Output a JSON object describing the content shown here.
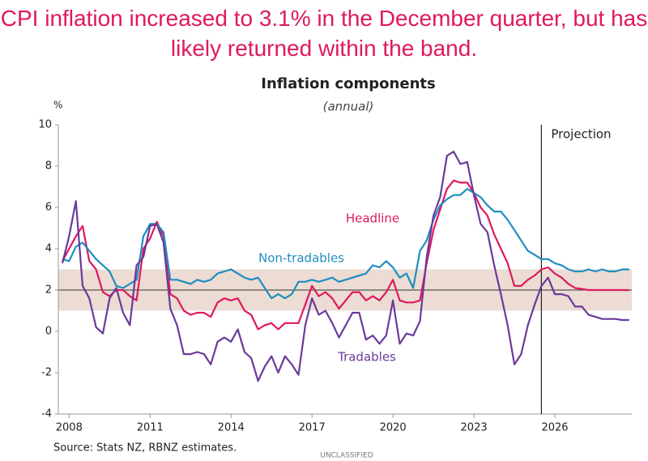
{
  "chart_data": {
    "type": "line",
    "headline": "CPI inflation increased to 3.1% in the December quarter, but has likely returned within the band.",
    "title": "Inflation components",
    "subtitle": "(annual)",
    "y_unit": "%",
    "source": "Source: Stats NZ, RBNZ estimates.",
    "classification": "UNCLASSIFIED",
    "projection_x": 2025.5,
    "projection_label": "Projection",
    "target_band": [
      1,
      3
    ],
    "band_color": "#ecdcd3",
    "hline": 2,
    "xlim": [
      2007.6,
      2028.85
    ],
    "xticks": [
      2008,
      2011,
      2014,
      2017,
      2020,
      2023,
      2026
    ],
    "ylim": [
      -4,
      10
    ],
    "yticks": [
      -4,
      -2,
      0,
      2,
      4,
      6,
      8,
      10
    ],
    "x": [
      2007.75,
      2008,
      2008.25,
      2008.5,
      2008.75,
      2009,
      2009.25,
      2009.5,
      2009.75,
      2010,
      2010.25,
      2010.5,
      2010.75,
      2011,
      2011.25,
      2011.5,
      2011.75,
      2012,
      2012.25,
      2012.5,
      2012.75,
      2013,
      2013.25,
      2013.5,
      2013.75,
      2014,
      2014.25,
      2014.5,
      2014.75,
      2015,
      2015.25,
      2015.5,
      2015.75,
      2016,
      2016.25,
      2016.5,
      2016.75,
      2017,
      2017.25,
      2017.5,
      2017.75,
      2018,
      2018.25,
      2018.5,
      2018.75,
      2019,
      2019.25,
      2019.5,
      2019.75,
      2020,
      2020.25,
      2020.5,
      2020.75,
      2021,
      2021.25,
      2021.5,
      2021.75,
      2022,
      2022.25,
      2022.5,
      2022.75,
      2023,
      2023.25,
      2023.5,
      2023.75,
      2024,
      2024.25,
      2024.5,
      2024.75,
      2025,
      2025.25,
      2025.5,
      2025.75,
      2026,
      2026.25,
      2026.5,
      2026.75,
      2027,
      2027.25,
      2027.5,
      2027.75,
      2028,
      2028.25,
      2028.5,
      2028.75
    ],
    "series": [
      {
        "name": "Headline",
        "color": "#e0185f",
        "values": [
          3.4,
          4.0,
          4.6,
          5.1,
          3.4,
          3.0,
          1.9,
          1.7,
          2.0,
          2.0,
          1.7,
          1.5,
          4.0,
          4.5,
          5.3,
          4.6,
          1.8,
          1.6,
          1.0,
          0.8,
          0.9,
          0.9,
          0.7,
          1.4,
          1.6,
          1.5,
          1.6,
          1.0,
          0.8,
          0.1,
          0.3,
          0.4,
          0.1,
          0.4,
          0.4,
          0.4,
          1.3,
          2.2,
          1.7,
          1.9,
          1.6,
          1.1,
          1.5,
          1.9,
          1.9,
          1.5,
          1.7,
          1.5,
          1.9,
          2.5,
          1.5,
          1.4,
          1.4,
          1.5,
          3.3,
          4.9,
          5.9,
          6.9,
          7.3,
          7.2,
          7.2,
          6.7,
          6.0,
          5.6,
          4.7,
          4.0,
          3.3,
          2.2,
          2.2,
          2.5,
          2.7,
          3.0,
          3.1,
          2.8,
          2.6,
          2.3,
          2.1,
          2.05,
          2.0,
          2.0,
          2.0,
          2.0,
          2.0,
          2.0,
          2.0
        ]
      },
      {
        "name": "Non-tradables",
        "color": "#1f8dc1",
        "values": [
          3.5,
          3.4,
          4.1,
          4.3,
          3.9,
          3.5,
          3.2,
          2.9,
          2.2,
          2.1,
          2.3,
          2.5,
          4.6,
          5.2,
          5.2,
          4.8,
          2.5,
          2.5,
          2.4,
          2.3,
          2.5,
          2.4,
          2.5,
          2.8,
          2.9,
          3.0,
          2.8,
          2.6,
          2.5,
          2.6,
          2.1,
          1.6,
          1.8,
          1.6,
          1.8,
          2.4,
          2.4,
          2.5,
          2.4,
          2.5,
          2.6,
          2.4,
          2.5,
          2.6,
          2.7,
          2.8,
          3.2,
          3.1,
          3.4,
          3.1,
          2.6,
          2.8,
          2.1,
          3.9,
          4.4,
          5.4,
          6.1,
          6.4,
          6.6,
          6.6,
          6.9,
          6.7,
          6.5,
          6.1,
          5.8,
          5.8,
          5.4,
          4.9,
          4.4,
          3.9,
          3.7,
          3.5,
          3.5,
          3.3,
          3.2,
          3.0,
          2.9,
          2.9,
          3.0,
          2.9,
          3.0,
          2.9,
          2.9,
          3.0,
          3.0
        ]
      },
      {
        "name": "Tradables",
        "color": "#6a3a9b",
        "values": [
          3.3,
          4.6,
          6.3,
          2.2,
          1.6,
          0.2,
          -0.1,
          1.6,
          2.1,
          0.9,
          0.3,
          3.2,
          3.6,
          5.1,
          5.2,
          4.3,
          1.1,
          0.3,
          -1.1,
          -1.1,
          -1.0,
          -1.1,
          -1.6,
          -0.5,
          -0.3,
          -0.5,
          0.1,
          -1.0,
          -1.3,
          -2.4,
          -1.7,
          -1.2,
          -2.0,
          -1.2,
          -1.6,
          -2.1,
          0.3,
          1.6,
          0.8,
          1.0,
          0.4,
          -0.3,
          0.3,
          0.9,
          0.9,
          -0.4,
          -0.2,
          -0.6,
          -0.2,
          1.5,
          -0.6,
          -0.1,
          -0.2,
          0.5,
          3.6,
          5.6,
          6.5,
          8.5,
          8.7,
          8.1,
          8.2,
          6.6,
          5.2,
          4.8,
          3.2,
          1.8,
          0.3,
          -1.6,
          -1.1,
          0.3,
          1.3,
          2.2,
          2.6,
          1.8,
          1.8,
          1.7,
          1.2,
          1.2,
          0.8,
          0.7,
          0.6,
          0.6,
          0.6,
          0.55,
          0.55
        ]
      }
    ]
  }
}
